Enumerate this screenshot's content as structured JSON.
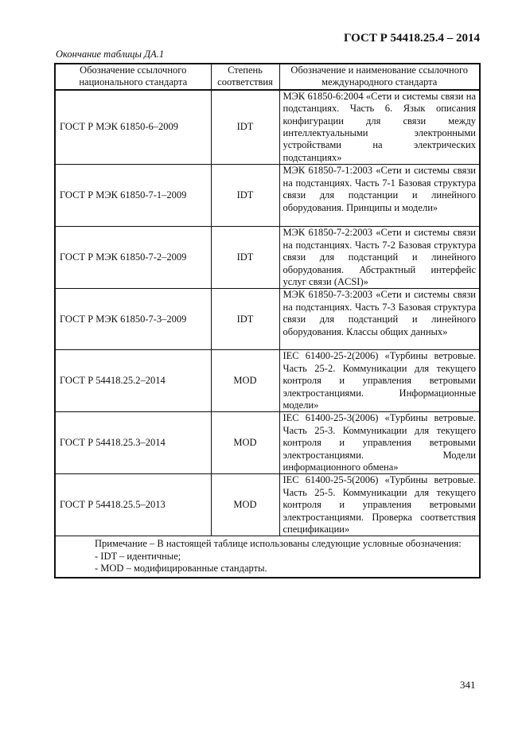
{
  "header": {
    "doc_number": "ГОСТ Р 54418.25.4 – 2014"
  },
  "caption": "Окончание таблицы ДА.1",
  "table": {
    "columns": [
      "Обозначение ссылочного национального стандарта",
      "Степень соответствия",
      "Обозначение и наименование ссылочного международного стандарта"
    ],
    "rows": [
      {
        "national": "ГОСТ Р МЭК 61850-6–2009",
        "degree": "IDT",
        "international": "МЭК 61850-6:2004 «Сети и системы связи на подстанциях. Часть 6. Язык описания конфигурации для связи между интеллектуальными электронными устройствами на электрических подстанциях»"
      },
      {
        "national": "ГОСТ Р МЭК 61850-7-1–2009",
        "degree": "IDT",
        "international": "МЭК 61850-7-1:2003 «Сети и системы связи на подстанциях. Часть 7-1 Базовая структура связи для подстанции и линейного оборудования. Принципы и модели»"
      },
      {
        "national": "ГОСТ Р МЭК 61850-7-2–2009",
        "degree": "IDT",
        "international": "МЭК 61850-7-2:2003 «Сети и системы связи на подстанциях. Часть 7-2 Базовая структура связи для подстанций и линейного оборудования. Абстрактный интерфейс услуг связи (ACSI)»"
      },
      {
        "national": "ГОСТ Р МЭК 61850-7-3–2009",
        "degree": "IDT",
        "international": "МЭК 61850-7-3:2003 «Сети и системы связи на подстанциях. Часть 7-3 Базовая структура связи для подстанций и линейного оборудования. Классы общих данных»"
      },
      {
        "national": "ГОСТ Р 54418.25.2–2014",
        "degree": "MOD",
        "international": "IEC 61400-25-2(2006) «Турбины ветровые. Часть 25-2. Коммуникации для текущего контроля и управления ветровыми электростанциями. Информационные модели»"
      },
      {
        "national": "ГОСТ Р 54418.25.3–2014",
        "degree": "MOD",
        "international": "IEC 61400-25-3(2006) «Турбины ветровые. Часть 25-3. Коммуникации для текущего контроля и управления ветровыми электростанциями. Модели информационного обмена»"
      },
      {
        "national": "ГОСТ Р 54418.25.5–2013",
        "degree": "MOD",
        "international": "IEC 61400-25-5(2006) «Турбины ветровые. Часть 25-5. Коммуникации для текущего контроля и управления ветровыми электростанциями. Проверка соответствия спецификации»"
      }
    ],
    "note": {
      "intro": "Примечание – В настоящей таблице использованы следующие условные обозначения:",
      "items": [
        "- IDT – идентичные;",
        "- MOD – модифицированные стандарты."
      ]
    }
  },
  "page_number": "341"
}
